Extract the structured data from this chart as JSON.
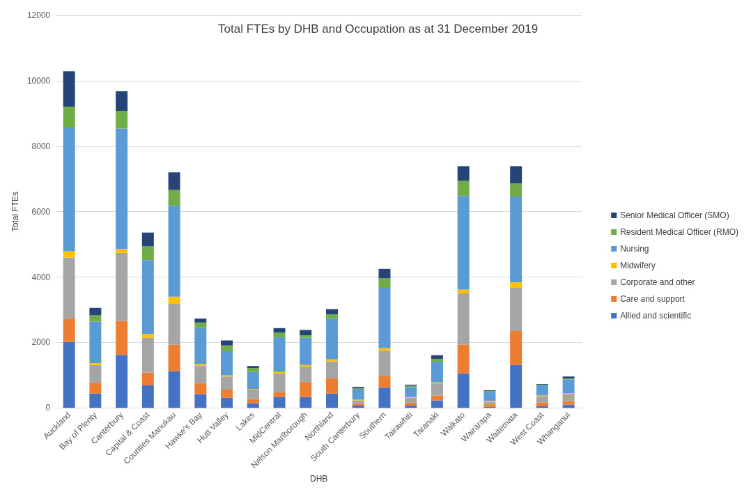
{
  "chart_data": {
    "type": "bar",
    "title": "Total FTEs by DHB and Occupation as at 31 December 2019",
    "xlabel": "DHB",
    "ylabel": "Total FTEs",
    "stacked": true,
    "grid": "y",
    "legend": "right",
    "ylim": [
      0,
      12000
    ],
    "yticks": [
      0,
      2000,
      4000,
      6000,
      8000,
      10000,
      12000
    ],
    "categories": [
      "Auckland",
      "Bay of Plenty",
      "Canterbury",
      "Capital & Coast",
      "Counties Manukau",
      "Hawke's Bay",
      "Hutt Valley",
      "Lakes",
      "MidCentral",
      "Nelson Marlborough",
      "Northland",
      "South Canterbury",
      "Southern",
      "Tairawhiti",
      "Taranaki",
      "Waikato",
      "Wairarapa",
      "Waitemata",
      "West Coast",
      "Whanganui"
    ],
    "series": [
      {
        "name": "Allied and scientific",
        "color": "#4472c4",
        "values": [
          2020,
          440,
          1620,
          690,
          1120,
          420,
          310,
          140,
          330,
          330,
          440,
          70,
          620,
          70,
          230,
          1060,
          40,
          1310,
          50,
          100
        ]
      },
      {
        "name": "Care and support",
        "color": "#ed7d31",
        "values": [
          710,
          330,
          1040,
          390,
          810,
          340,
          250,
          130,
          150,
          460,
          460,
          60,
          350,
          90,
          150,
          870,
          70,
          1040,
          120,
          110
        ]
      },
      {
        "name": "Corporate and other",
        "color": "#a5a5a5",
        "values": [
          1870,
          540,
          2080,
          1060,
          1250,
          520,
          400,
          290,
          580,
          480,
          520,
          100,
          780,
          150,
          370,
          1580,
          80,
          1320,
          180,
          220
        ]
      },
      {
        "name": "Midwifery",
        "color": "#ffc000",
        "values": [
          190,
          60,
          120,
          120,
          220,
          60,
          40,
          20,
          40,
          40,
          60,
          20,
          80,
          20,
          30,
          110,
          30,
          170,
          30,
          20
        ]
      },
      {
        "name": "Nursing",
        "color": "#5b9bd5",
        "values": [
          3780,
          1270,
          3680,
          2260,
          2780,
          1100,
          730,
          520,
          1060,
          830,
          1240,
          310,
          1840,
          310,
          630,
          2860,
          270,
          2620,
          310,
          420
        ]
      },
      {
        "name": "Resident Medical Officer (RMO)",
        "color": "#70ad47",
        "values": [
          640,
          190,
          540,
          420,
          480,
          170,
          180,
          120,
          140,
          80,
          140,
          40,
          290,
          40,
          90,
          460,
          30,
          400,
          20,
          30
        ]
      },
      {
        "name": "Senior Medical Officer (SMO)",
        "color": "#264478",
        "values": [
          1080,
          230,
          600,
          420,
          540,
          120,
          150,
          60,
          140,
          160,
          160,
          40,
          290,
          30,
          110,
          450,
          20,
          530,
          20,
          60
        ]
      }
    ]
  }
}
